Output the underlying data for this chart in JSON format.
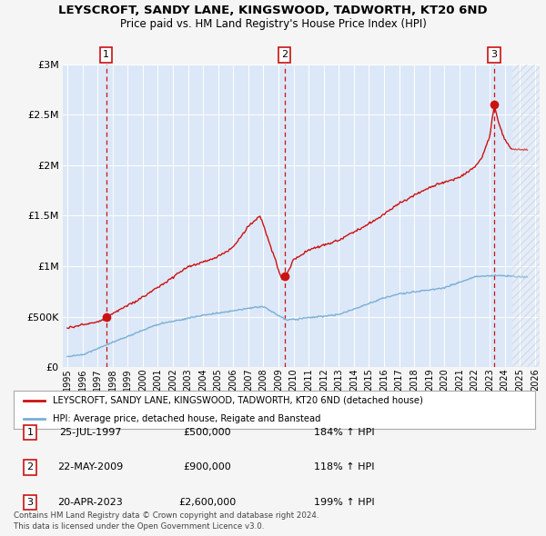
{
  "title": "LEYSCROFT, SANDY LANE, KINGSWOOD, TADWORTH, KT20 6ND",
  "subtitle": "Price paid vs. HM Land Registry's House Price Index (HPI)",
  "background_color": "#f5f5f5",
  "plot_background": "#dce8f8",
  "sale_dates": [
    1997.57,
    2009.39,
    2023.3
  ],
  "sale_prices": [
    500000,
    900000,
    2600000
  ],
  "sale_labels": [
    "1",
    "2",
    "3"
  ],
  "hpi_color": "#7bafd4",
  "price_color": "#cc1111",
  "dashed_line_color": "#cc1111",
  "ylim": [
    0,
    3000000
  ],
  "xlim": [
    1994.7,
    2026.3
  ],
  "yticks": [
    0,
    500000,
    1000000,
    1500000,
    2000000,
    2500000,
    3000000
  ],
  "ytick_labels": [
    "£0",
    "£500K",
    "£1M",
    "£1.5M",
    "£2M",
    "£2.5M",
    "£3M"
  ],
  "xtick_years": [
    1995,
    1996,
    1997,
    1998,
    1999,
    2000,
    2001,
    2002,
    2003,
    2004,
    2005,
    2006,
    2007,
    2008,
    2009,
    2010,
    2011,
    2012,
    2013,
    2014,
    2015,
    2016,
    2017,
    2018,
    2019,
    2020,
    2021,
    2022,
    2023,
    2024,
    2025,
    2026
  ],
  "legend_label_price": "LEYSCROFT, SANDY LANE, KINGSWOOD, TADWORTH, KT20 6ND (detached house)",
  "legend_label_hpi": "HPI: Average price, detached house, Reigate and Banstead",
  "table_rows": [
    {
      "num": "1",
      "date": "25-JUL-1997",
      "price": "£500,000",
      "hpi": "184% ↑ HPI"
    },
    {
      "num": "2",
      "date": "22-MAY-2009",
      "price": "£900,000",
      "hpi": "118% ↑ HPI"
    },
    {
      "num": "3",
      "date": "20-APR-2023",
      "price": "£2,600,000",
      "hpi": "199% ↑ HPI"
    }
  ],
  "footnote1": "Contains HM Land Registry data © Crown copyright and database right 2024.",
  "footnote2": "This data is licensed under the Open Government Licence v3.0."
}
